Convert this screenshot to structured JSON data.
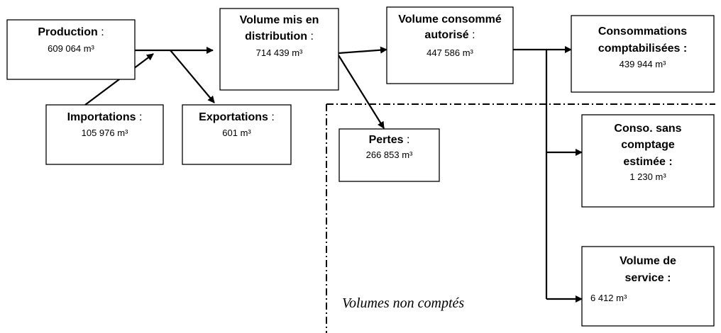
{
  "nodes": [
    {
      "id": "production",
      "lines": [
        "Production"
      ],
      "suffix": " :",
      "value": "609 064 m³"
    },
    {
      "id": "importations",
      "lines": [
        "Importations"
      ],
      "suffix": " :",
      "value": "105 976 m³"
    },
    {
      "id": "exportations",
      "lines": [
        "Exportations"
      ],
      "suffix": " :",
      "value": "601 m³"
    },
    {
      "id": "distribution",
      "lines": [
        "Volume mis en",
        "distribution"
      ],
      "suffix": " :",
      "value": "714 439 m³"
    },
    {
      "id": "autorise",
      "lines": [
        "Volume consommé",
        "autorisé"
      ],
      "suffix": " :",
      "value": "447 586 m³"
    },
    {
      "id": "comptabilisees",
      "lines": [
        "Consommations",
        "comptabilisées :"
      ],
      "value": "439 944 m³"
    },
    {
      "id": "pertes",
      "lines": [
        "Pertes"
      ],
      "suffix": " :",
      "value": "266 853 m³"
    },
    {
      "id": "sans-comptage",
      "lines": [
        "Conso. sans",
        "comptage",
        "estimée :"
      ],
      "value": "1 230 m³"
    },
    {
      "id": "service",
      "lines": [
        "Volume de",
        "service :"
      ],
      "value": "6 412 m³"
    }
  ],
  "region_label": "Volumes non comptés"
}
